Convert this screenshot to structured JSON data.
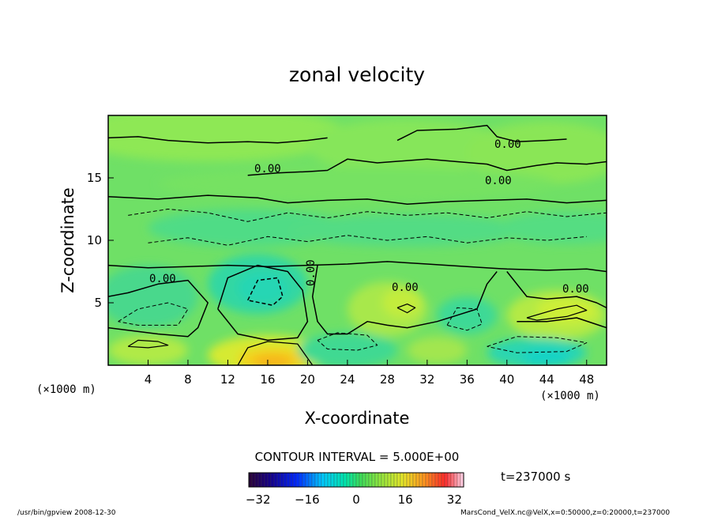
{
  "chart_data": {
    "type": "heatmap",
    "title": "zonal velocity",
    "xlabel": "X-coordinate",
    "ylabel": "Z-coordinate",
    "x_unit": "(×1000 m)",
    "x_unit_right": "(×1000 m)",
    "xlim": [
      0,
      50
    ],
    "ylim": [
      0,
      20
    ],
    "x_ticks": [
      4,
      8,
      12,
      16,
      20,
      24,
      28,
      32,
      36,
      40,
      44,
      48
    ],
    "y_ticks": [
      5,
      10,
      15
    ],
    "contour_label": "0.00",
    "contour_interval_text": "CONTOUR INTERVAL = 5.000E+00",
    "colorbar": {
      "ticks": [
        -32,
        -16,
        0,
        16,
        32
      ],
      "range": [
        -35,
        35
      ]
    },
    "time_text": "t=237000 s",
    "footer_left": "/usr/bin/gpview  2008-12-30",
    "footer_right": "MarsCond_VelX.nc@VelX,x=0:50000,z=0:20000,t=237000"
  }
}
